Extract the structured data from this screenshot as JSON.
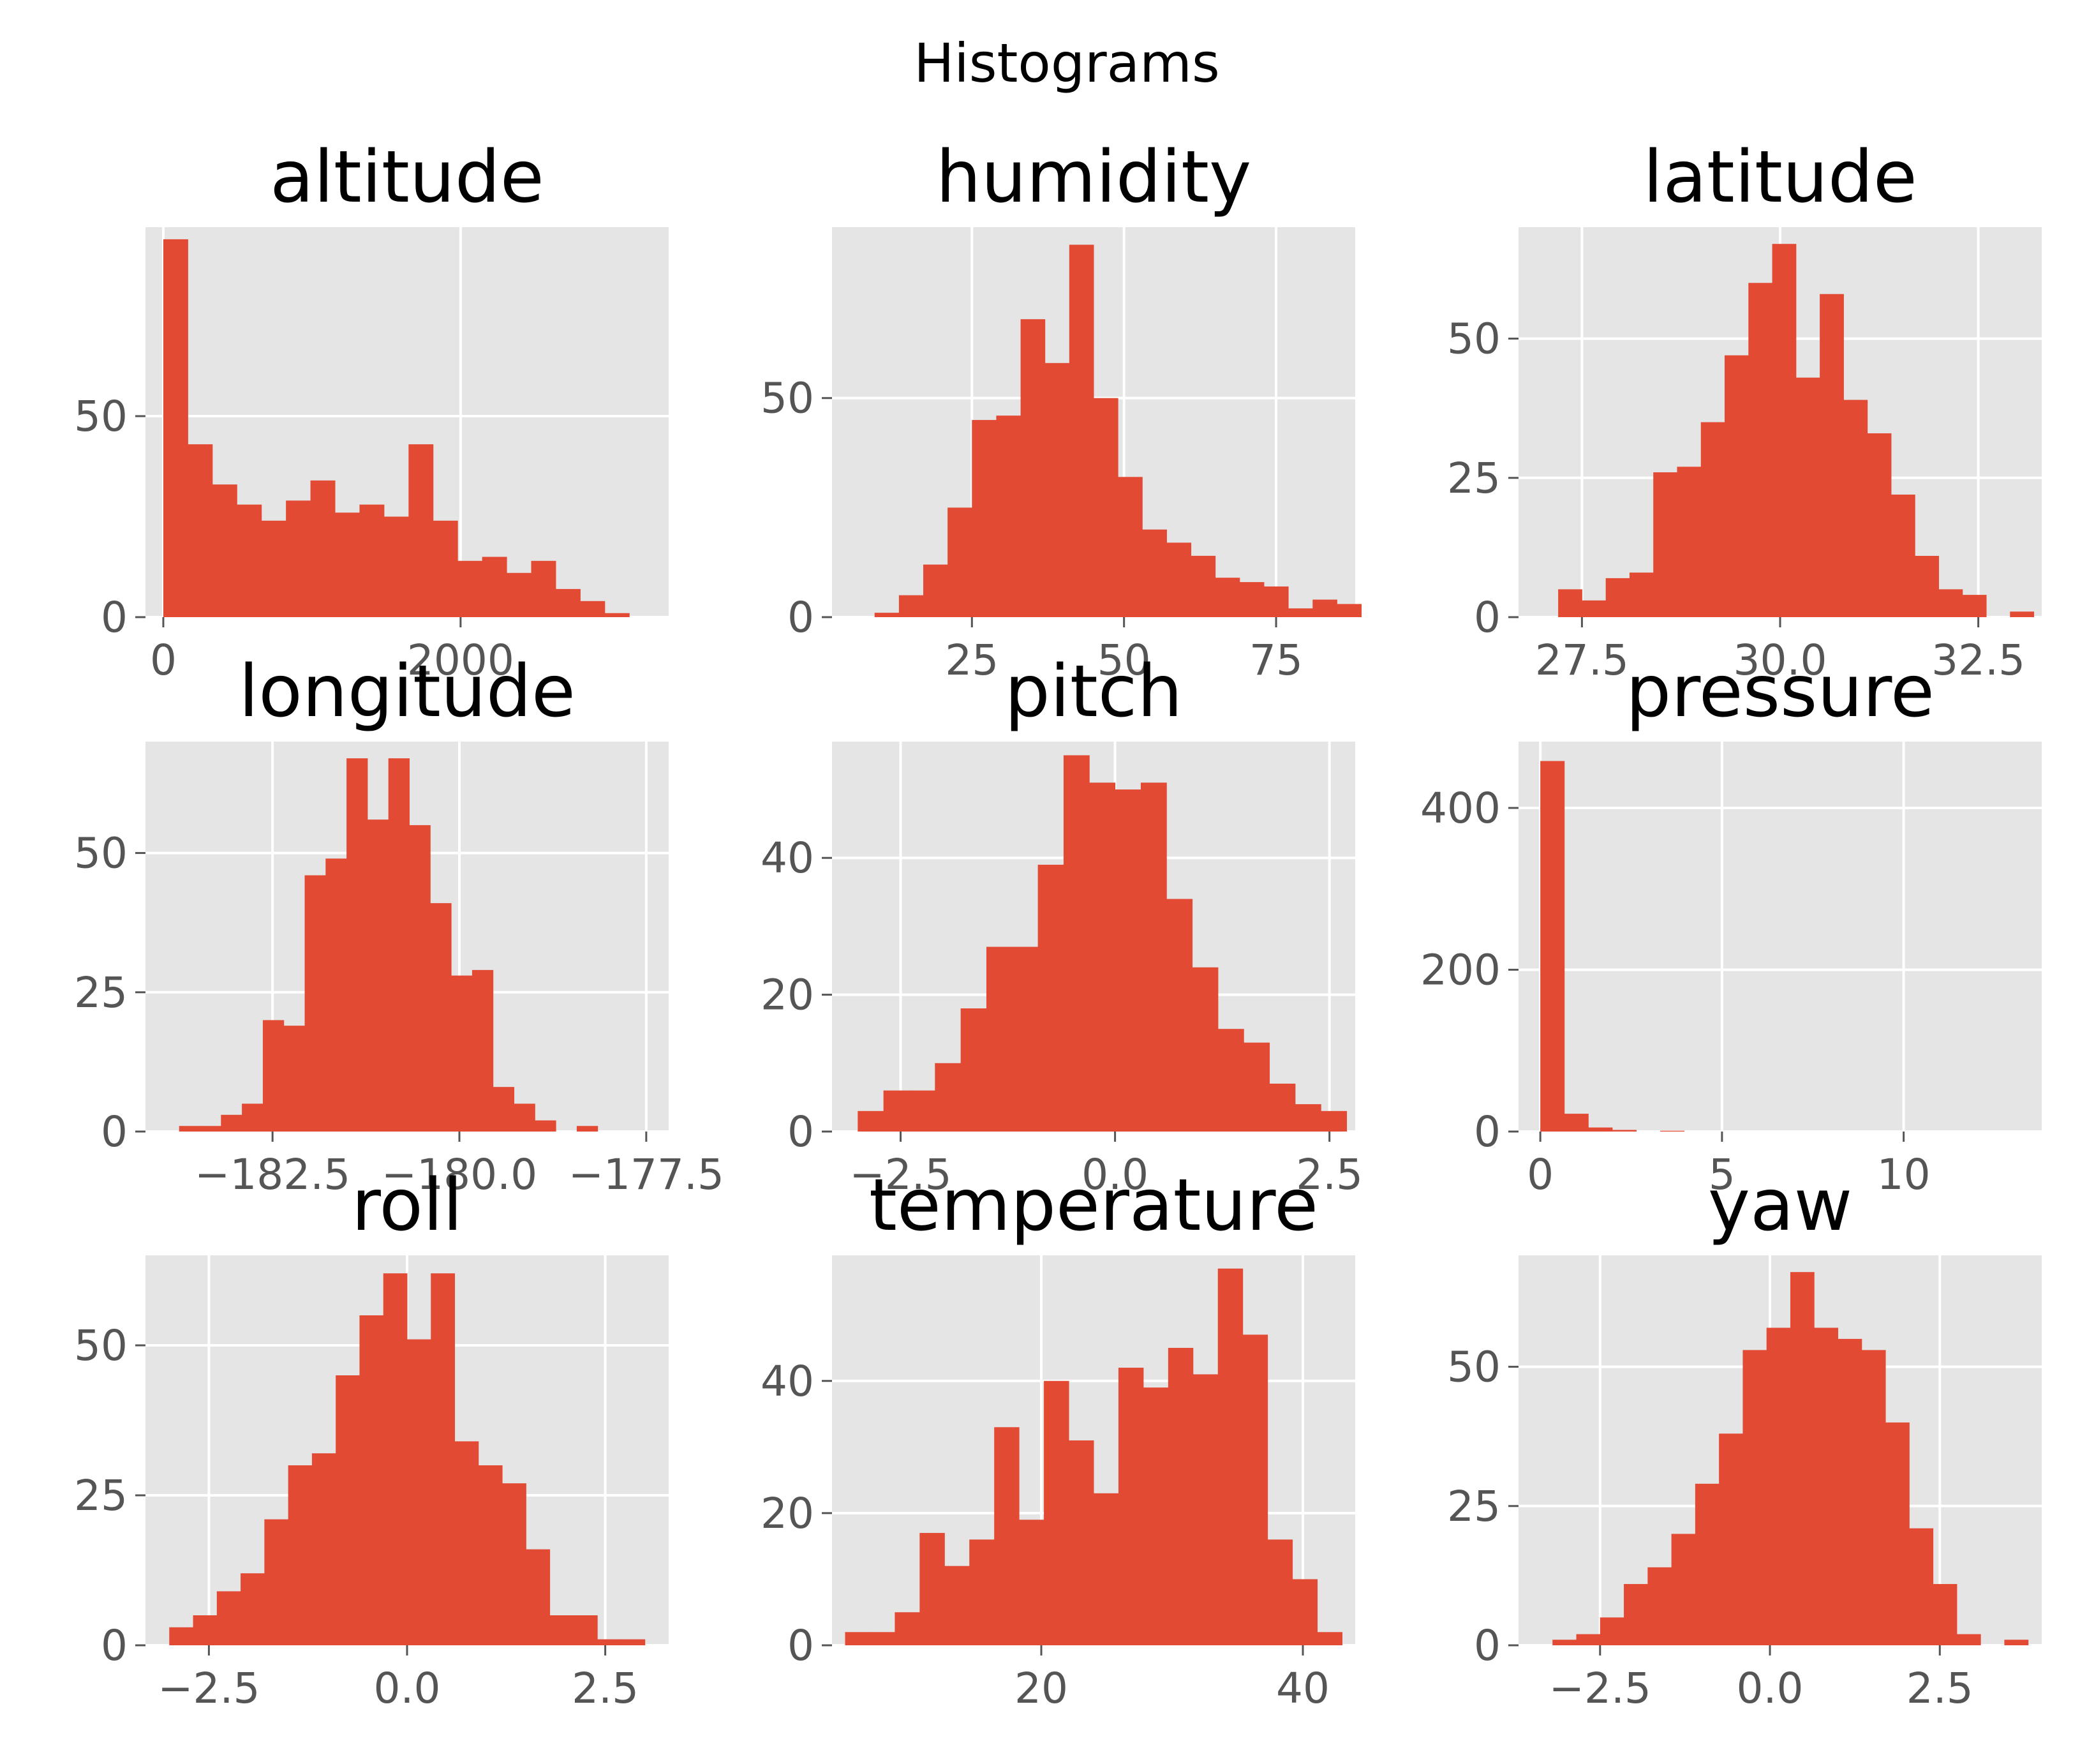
{
  "figure": {
    "suptitle": "Histograms"
  },
  "colors": {
    "background": "#E5E5E5",
    "bar": "#E24A33",
    "grid": "#FFFFFF",
    "tick_text": "#555555",
    "title_text": "#000000"
  },
  "chart_data": [
    {
      "type": "bar",
      "title": "altitude",
      "grid": true,
      "bin_start": 0,
      "bin_width": 165,
      "values": [
        94,
        43,
        33,
        28,
        24,
        29,
        34,
        26,
        28,
        25,
        43,
        24,
        14,
        15,
        11,
        14,
        7,
        4,
        1,
        0
      ],
      "xlim": [
        -120,
        3400
      ],
      "ylim": [
        0,
        97
      ],
      "xticks": [
        0,
        2000
      ],
      "xtick_labels": [
        "0",
        "2000"
      ],
      "yticks": [
        0,
        50
      ],
      "ytick_labels": [
        "0",
        "50"
      ]
    },
    {
      "type": "bar",
      "title": "humidity",
      "grid": true,
      "bin_start": 5,
      "bin_width": 4.0,
      "values": [
        0,
        1,
        5,
        12,
        25,
        45,
        46,
        68,
        58,
        85,
        50,
        32,
        20,
        17,
        14,
        9,
        8,
        7,
        2,
        4,
        3
      ],
      "xlim": [
        2,
        88
      ],
      "ylim": [
        0,
        89
      ],
      "xticks": [
        25,
        50,
        75
      ],
      "xtick_labels": [
        "25",
        "50",
        "75"
      ],
      "yticks": [
        0,
        50
      ],
      "ytick_labels": [
        "0",
        "50"
      ]
    },
    {
      "type": "bar",
      "title": "latitude",
      "grid": true,
      "bin_start": 27.2,
      "bin_width": 0.3,
      "values": [
        5,
        3,
        7,
        8,
        26,
        27,
        35,
        47,
        60,
        67,
        43,
        58,
        39,
        33,
        22,
        11,
        5,
        4,
        0,
        1
      ],
      "xlim": [
        26.7,
        33.3
      ],
      "ylim": [
        0,
        70
      ],
      "xticks": [
        27.5,
        30.0,
        32.5
      ],
      "xtick_labels": [
        "27.5",
        "30.0",
        "32.5"
      ],
      "yticks": [
        0,
        25,
        50
      ],
      "ytick_labels": [
        "0",
        "25",
        "50"
      ]
    },
    {
      "type": "bar",
      "title": "longitude",
      "grid": true,
      "bin_start": -183.75,
      "bin_width": 0.28,
      "values": [
        1,
        1,
        3,
        5,
        20,
        19,
        46,
        49,
        67,
        56,
        67,
        55,
        41,
        28,
        29,
        8,
        5,
        2,
        0,
        1
      ],
      "xlim": [
        -184.2,
        -177.2
      ],
      "ylim": [
        0,
        70
      ],
      "xticks": [
        -182.5,
        -180.0,
        -177.5
      ],
      "xtick_labels": [
        "−182.5",
        "−180.0",
        "−177.5"
      ],
      "yticks": [
        0,
        25,
        50
      ],
      "ytick_labels": [
        "0",
        "25",
        "50"
      ]
    },
    {
      "type": "bar",
      "title": "pitch",
      "grid": true,
      "bin_start": -3.0,
      "bin_width": 0.3,
      "values": [
        3,
        6,
        6,
        10,
        18,
        27,
        27,
        39,
        55,
        51,
        50,
        51,
        34,
        24,
        15,
        13,
        7,
        4,
        3
      ],
      "xlim": [
        -3.3,
        2.8
      ],
      "ylim": [
        0,
        57
      ],
      "xticks": [
        -2.5,
        0.0,
        2.5
      ],
      "xtick_labels": [
        "−2.5",
        "0.0",
        "2.5"
      ],
      "yticks": [
        0,
        20,
        40
      ],
      "ytick_labels": [
        "0",
        "20",
        "40"
      ]
    },
    {
      "type": "bar",
      "title": "pressure",
      "grid": true,
      "bin_start": 0,
      "bin_width": 0.66,
      "values": [
        458,
        22,
        5,
        2,
        0,
        1,
        0,
        0,
        0,
        0,
        0,
        0,
        0,
        0,
        0,
        0,
        0,
        0,
        0,
        0
      ],
      "xlim": [
        -0.6,
        13.8
      ],
      "ylim": [
        0,
        482
      ],
      "xticks": [
        0,
        5,
        10
      ],
      "xtick_labels": [
        "0",
        "5",
        "10"
      ],
      "yticks": [
        0,
        200,
        400
      ],
      "ytick_labels": [
        "0",
        "200",
        "400"
      ]
    },
    {
      "type": "bar",
      "title": "roll",
      "grid": true,
      "bin_start": -3.0,
      "bin_width": 0.3,
      "values": [
        3,
        5,
        9,
        12,
        21,
        30,
        32,
        45,
        55,
        62,
        51,
        62,
        34,
        30,
        27,
        16,
        5,
        5,
        1,
        1
      ],
      "xlim": [
        -3.3,
        3.3
      ],
      "ylim": [
        0,
        65
      ],
      "xticks": [
        -2.5,
        0.0,
        2.5
      ],
      "xtick_labels": [
        "−2.5",
        "0.0",
        "2.5"
      ],
      "yticks": [
        0,
        25,
        50
      ],
      "ytick_labels": [
        "0",
        "25",
        "50"
      ]
    },
    {
      "type": "bar",
      "title": "temperature",
      "grid": true,
      "bin_start": 5,
      "bin_width": 1.9,
      "values": [
        2,
        2,
        5,
        17,
        12,
        16,
        33,
        19,
        40,
        31,
        23,
        42,
        39,
        45,
        41,
        57,
        47,
        16,
        10,
        2
      ],
      "xlim": [
        4.0,
        44.0
      ],
      "ylim": [
        0,
        59
      ],
      "xticks": [
        20,
        40
      ],
      "xtick_labels": [
        "20",
        "40"
      ],
      "yticks": [
        0,
        20,
        40
      ],
      "ytick_labels": [
        "0",
        "20",
        "40"
      ]
    },
    {
      "type": "bar",
      "title": "yaw",
      "grid": true,
      "bin_start": -3.2,
      "bin_width": 0.35,
      "values": [
        1,
        2,
        5,
        11,
        14,
        20,
        29,
        38,
        53,
        57,
        67,
        57,
        55,
        53,
        40,
        21,
        11,
        2,
        0,
        1
      ],
      "xlim": [
        -3.7,
        4.0
      ],
      "ylim": [
        0,
        70
      ],
      "xticks": [
        -2.5,
        0.0,
        2.5
      ],
      "xtick_labels": [
        "−2.5",
        "0.0",
        "2.5"
      ],
      "yticks": [
        0,
        25,
        50
      ],
      "ytick_labels": [
        "0",
        "25",
        "50"
      ]
    }
  ]
}
